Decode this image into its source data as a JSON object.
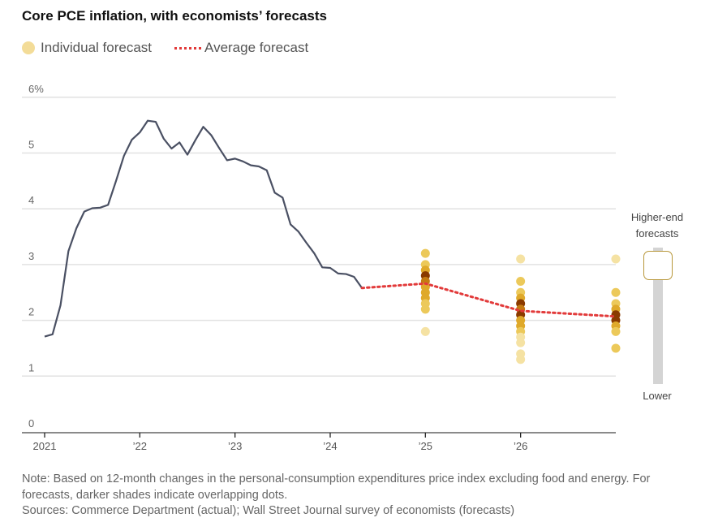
{
  "title": "Core PCE inflation, with economists’ forecasts",
  "legend": {
    "individual": "Individual forecast",
    "average": "Average forecast"
  },
  "slider": {
    "top_label_1": "Higher-end",
    "top_label_2": "forecasts",
    "bottom_label": "Lower",
    "position": 1.0
  },
  "note": {
    "line1": "Note: Based on 12-month changes in the personal-consumption expenditures price index excluding food and energy. For",
    "line2": "forecasts, darker shades indicate overlapping dots.",
    "line3": "Sources: Commerce Department (actual); Wall Street Journal survey of economists (forecasts)"
  },
  "colors": {
    "actual": "#4a5063",
    "average": "#e23a3a",
    "dot_light": "#f5e2a3",
    "dot_dark": "#7a2e00",
    "grid": "#e2e2e2"
  },
  "chart_data": {
    "type": "line",
    "ylim": [
      0,
      6
    ],
    "xlim": [
      2021,
      2027
    ],
    "yticks": [
      "0",
      "1",
      "2",
      "3",
      "4",
      "5",
      "6%"
    ],
    "xticks": [
      {
        "x": 2021,
        "label": "2021"
      },
      {
        "x": 2022,
        "label": "’22"
      },
      {
        "x": 2023,
        "label": "’23"
      },
      {
        "x": 2024,
        "label": "’24"
      },
      {
        "x": 2025,
        "label": "’25"
      },
      {
        "x": 2026,
        "label": "’26"
      }
    ],
    "grid": true,
    "actual": {
      "start": "2021-01",
      "frequency": "monthly",
      "values": [
        1.71,
        1.75,
        2.27,
        3.24,
        3.65,
        3.95,
        4.01,
        4.02,
        4.07,
        4.5,
        4.95,
        5.24,
        5.37,
        5.58,
        5.56,
        5.26,
        5.08,
        5.19,
        4.97,
        5.23,
        5.47,
        5.32,
        5.09,
        4.87,
        4.9,
        4.85,
        4.78,
        4.76,
        4.69,
        4.29,
        4.2,
        3.72,
        3.59,
        3.39,
        3.2,
        2.95,
        2.94,
        2.84,
        2.83,
        2.78,
        2.58
      ]
    },
    "average_forecast": [
      {
        "x": "2024-05",
        "y": 2.58
      },
      {
        "x": "2025-01",
        "y": 2.66
      },
      {
        "x": "2026-01",
        "y": 2.17
      },
      {
        "x": "2027-01",
        "y": 2.07
      }
    ],
    "individual_forecasts": [
      {
        "x": 2025,
        "dots": [
          {
            "y": 3.2,
            "n": 2
          },
          {
            "y": 3.0,
            "n": 2
          },
          {
            "y": 2.9,
            "n": 3
          },
          {
            "y": 2.8,
            "n": 5
          },
          {
            "y": 2.7,
            "n": 4
          },
          {
            "y": 2.6,
            "n": 3
          },
          {
            "y": 2.5,
            "n": 3
          },
          {
            "y": 2.4,
            "n": 3
          },
          {
            "y": 2.3,
            "n": 2
          },
          {
            "y": 2.2,
            "n": 2
          },
          {
            "y": 1.8,
            "n": 1
          }
        ]
      },
      {
        "x": 2026,
        "dots": [
          {
            "y": 3.1,
            "n": 1
          },
          {
            "y": 2.7,
            "n": 2
          },
          {
            "y": 2.5,
            "n": 2
          },
          {
            "y": 2.4,
            "n": 3
          },
          {
            "y": 2.3,
            "n": 5
          },
          {
            "y": 2.2,
            "n": 4
          },
          {
            "y": 2.1,
            "n": 5
          },
          {
            "y": 2.0,
            "n": 3
          },
          {
            "y": 1.9,
            "n": 3
          },
          {
            "y": 1.8,
            "n": 2
          },
          {
            "y": 1.7,
            "n": 1
          },
          {
            "y": 1.6,
            "n": 1
          },
          {
            "y": 1.4,
            "n": 1
          },
          {
            "y": 1.3,
            "n": 1
          }
        ]
      },
      {
        "x": 2027,
        "dots": [
          {
            "y": 3.1,
            "n": 1
          },
          {
            "y": 2.5,
            "n": 2
          },
          {
            "y": 2.3,
            "n": 2
          },
          {
            "y": 2.2,
            "n": 3
          },
          {
            "y": 2.1,
            "n": 5
          },
          {
            "y": 2.0,
            "n": 5
          },
          {
            "y": 1.9,
            "n": 3
          },
          {
            "y": 1.8,
            "n": 2
          },
          {
            "y": 1.5,
            "n": 2
          }
        ]
      }
    ]
  }
}
